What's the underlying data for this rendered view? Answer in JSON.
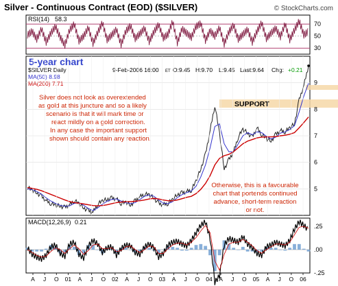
{
  "header": {
    "title": "Silver - Continuous Contract (EOD) ($SILVER)",
    "copyright": "© StockCharts.com"
  },
  "rsi_panel": {
    "label": "RSI(14)",
    "value_text": "58.3",
    "levels": [
      70,
      50,
      30
    ]
  },
  "price_panel": {
    "five_year_label": "5-year chart",
    "symbol_label": "$SILVER Daily",
    "quote": {
      "date_text": "9-Feb-2006 16:00",
      "tz": "ET",
      "open_text": "O:9.45",
      "high_text": "H:9.70",
      "low_text": "L:9.45",
      "last_text": "Last:9.64",
      "chg_label": "Chg:",
      "chg_value": "+0.21"
    },
    "legend": [
      {
        "label": "MA(50) 8.98",
        "color": "#3333cc"
      },
      {
        "label": "MA(200) 7.71",
        "color": "#cc0000"
      }
    ],
    "annotation_main": [
      "Silver does not look as overextended",
      "as gold at this juncture and so a likely",
      "scenario is that it will mark time or",
      "react mildly on a gold correction.",
      "In any case the important support",
      "shown should contain any reaction."
    ],
    "support_label": "SUPPORT",
    "annotation_bottom": [
      "Otherwise, this is a favourable",
      "chart that portends continued",
      "advance, short-term reaction",
      "or not."
    ],
    "annotation_color": "#cc2200",
    "y_ticks": [
      5,
      6,
      7,
      8,
      9
    ]
  },
  "macd_panel": {
    "label": "MACD(12,26,9)",
    "value_text": "0.21",
    "y_ticks": [
      "0.25",
      "0.00",
      "-0.25"
    ]
  },
  "x_axis": {
    "labels": [
      "A",
      "J",
      "O",
      "01",
      "A",
      "J",
      "O",
      "02",
      "A",
      "J",
      "O",
      "03",
      "A",
      "J",
      "O",
      "04",
      "A",
      "J",
      "O",
      "05",
      "A",
      "J",
      "O",
      "06"
    ]
  },
  "chart_data": {
    "type": "line",
    "title": "Silver - Continuous Contract (EOD) ($SILVER)",
    "x_range": [
      "2001-02",
      "2006-02"
    ],
    "y_range": [
      4.0,
      10.0
    ],
    "series": [
      {
        "name": "$SILVER Daily",
        "color": "#222222",
        "values": [
          5.05,
          4.95,
          4.85,
          4.72,
          4.55,
          4.45,
          4.38,
          4.35,
          4.3,
          4.4,
          4.55,
          4.45,
          4.28,
          4.18,
          4.12,
          4.42,
          4.55,
          4.6,
          4.65,
          4.62,
          4.45,
          4.5,
          4.38,
          4.55,
          4.7,
          4.8,
          4.78,
          4.65,
          4.45,
          4.4,
          4.45,
          4.6,
          4.78,
          4.85,
          4.9,
          4.95,
          5.3,
          5.75,
          6.3,
          7.2,
          8.15,
          7.1,
          5.75,
          6.1,
          6.4,
          6.95,
          7.25,
          7.1,
          6.95,
          7.3,
          7.05,
          6.9,
          6.8,
          7.05,
          7.2,
          7.15,
          7.3,
          7.45,
          8.35,
          8.9,
          9.64
        ]
      },
      {
        "name": "MA(50) 8.98",
        "color": "#3333cc",
        "values": [
          5.0,
          4.97,
          4.9,
          4.8,
          4.66,
          4.54,
          4.45,
          4.38,
          4.34,
          4.36,
          4.45,
          4.48,
          4.38,
          4.26,
          4.18,
          4.28,
          4.42,
          4.53,
          4.6,
          4.62,
          4.54,
          4.48,
          4.44,
          4.48,
          4.6,
          4.72,
          4.77,
          4.72,
          4.58,
          4.46,
          4.44,
          4.52,
          4.67,
          4.78,
          4.86,
          4.92,
          5.1,
          5.45,
          5.9,
          6.55,
          7.35,
          7.45,
          6.7,
          6.4,
          6.4,
          6.7,
          7.0,
          7.12,
          7.04,
          7.15,
          7.12,
          6.98,
          6.88,
          6.95,
          7.1,
          7.15,
          7.24,
          7.38,
          7.9,
          8.5,
          8.98
        ]
      },
      {
        "name": "MA(200) 7.71",
        "color": "#cc0000",
        "values": [
          5.05,
          5.02,
          4.98,
          4.93,
          4.86,
          4.79,
          4.72,
          4.65,
          4.58,
          4.52,
          4.48,
          4.46,
          4.43,
          4.4,
          4.37,
          4.36,
          4.37,
          4.4,
          4.44,
          4.48,
          4.5,
          4.52,
          4.52,
          4.53,
          4.55,
          4.58,
          4.62,
          4.64,
          4.62,
          4.58,
          4.55,
          4.55,
          4.58,
          4.63,
          4.68,
          4.72,
          4.82,
          4.98,
          5.2,
          5.5,
          5.9,
          6.15,
          6.25,
          6.3,
          6.4,
          6.55,
          6.7,
          6.8,
          6.86,
          6.92,
          6.95,
          6.96,
          6.96,
          6.97,
          7.0,
          7.02,
          7.06,
          7.12,
          7.3,
          7.5,
          7.71
        ]
      }
    ],
    "rsi": [
      52,
      58,
      45,
      62,
      40,
      55,
      66,
      48,
      35,
      60,
      70,
      42,
      50,
      64,
      38,
      56,
      72,
      44,
      52,
      61,
      36,
      58,
      67,
      46,
      54,
      63,
      41,
      57,
      69,
      47,
      53,
      74,
      39,
      62,
      55,
      48,
      66,
      71,
      43,
      59,
      50,
      64,
      37,
      57,
      68,
      45,
      53,
      61,
      40,
      58,
      72,
      46,
      55,
      63,
      49,
      70,
      44,
      60,
      75,
      52,
      58
    ],
    "macd": [
      0.02,
      -0.05,
      -0.08,
      -0.1,
      -0.06,
      0.03,
      0.05,
      -0.04,
      -0.07,
      0.06,
      0.08,
      -0.05,
      -0.09,
      0.04,
      0.1,
      0.06,
      -0.03,
      0.02,
      0.03,
      -0.06,
      0.01,
      0.05,
      0.04,
      -0.03,
      -0.05,
      0.03,
      0.06,
      0.02,
      -0.08,
      -0.04,
      0.05,
      0.08,
      0.09,
      0.06,
      0.04,
      0.1,
      0.18,
      0.26,
      0.3,
      0.12,
      -0.35,
      -0.28,
      0.05,
      0.12,
      0.1,
      0.08,
      0.14,
      0.06,
      0.02,
      -0.04,
      -0.06,
      0.03,
      0.05,
      0.08,
      0.06,
      0.04,
      0.1,
      0.22,
      0.3,
      0.26,
      0.21
    ],
    "macd_signal": [
      0.0,
      -0.03,
      -0.06,
      -0.08,
      -0.07,
      -0.02,
      0.02,
      0.0,
      -0.04,
      0.01,
      0.05,
      0.01,
      -0.05,
      -0.01,
      0.05,
      0.06,
      0.01,
      0.01,
      0.02,
      -0.02,
      -0.01,
      0.03,
      0.04,
      0.0,
      -0.03,
      0.0,
      0.04,
      0.03,
      -0.04,
      -0.04,
      0.01,
      0.05,
      0.07,
      0.07,
      0.05,
      0.08,
      0.13,
      0.2,
      0.26,
      0.18,
      -0.12,
      -0.22,
      -0.05,
      0.06,
      0.08,
      0.08,
      0.11,
      0.08,
      0.04,
      -0.01,
      -0.04,
      0.0,
      0.03,
      0.06,
      0.06,
      0.05,
      0.08,
      0.16,
      0.24,
      0.25,
      0.23
    ],
    "grid": true
  }
}
